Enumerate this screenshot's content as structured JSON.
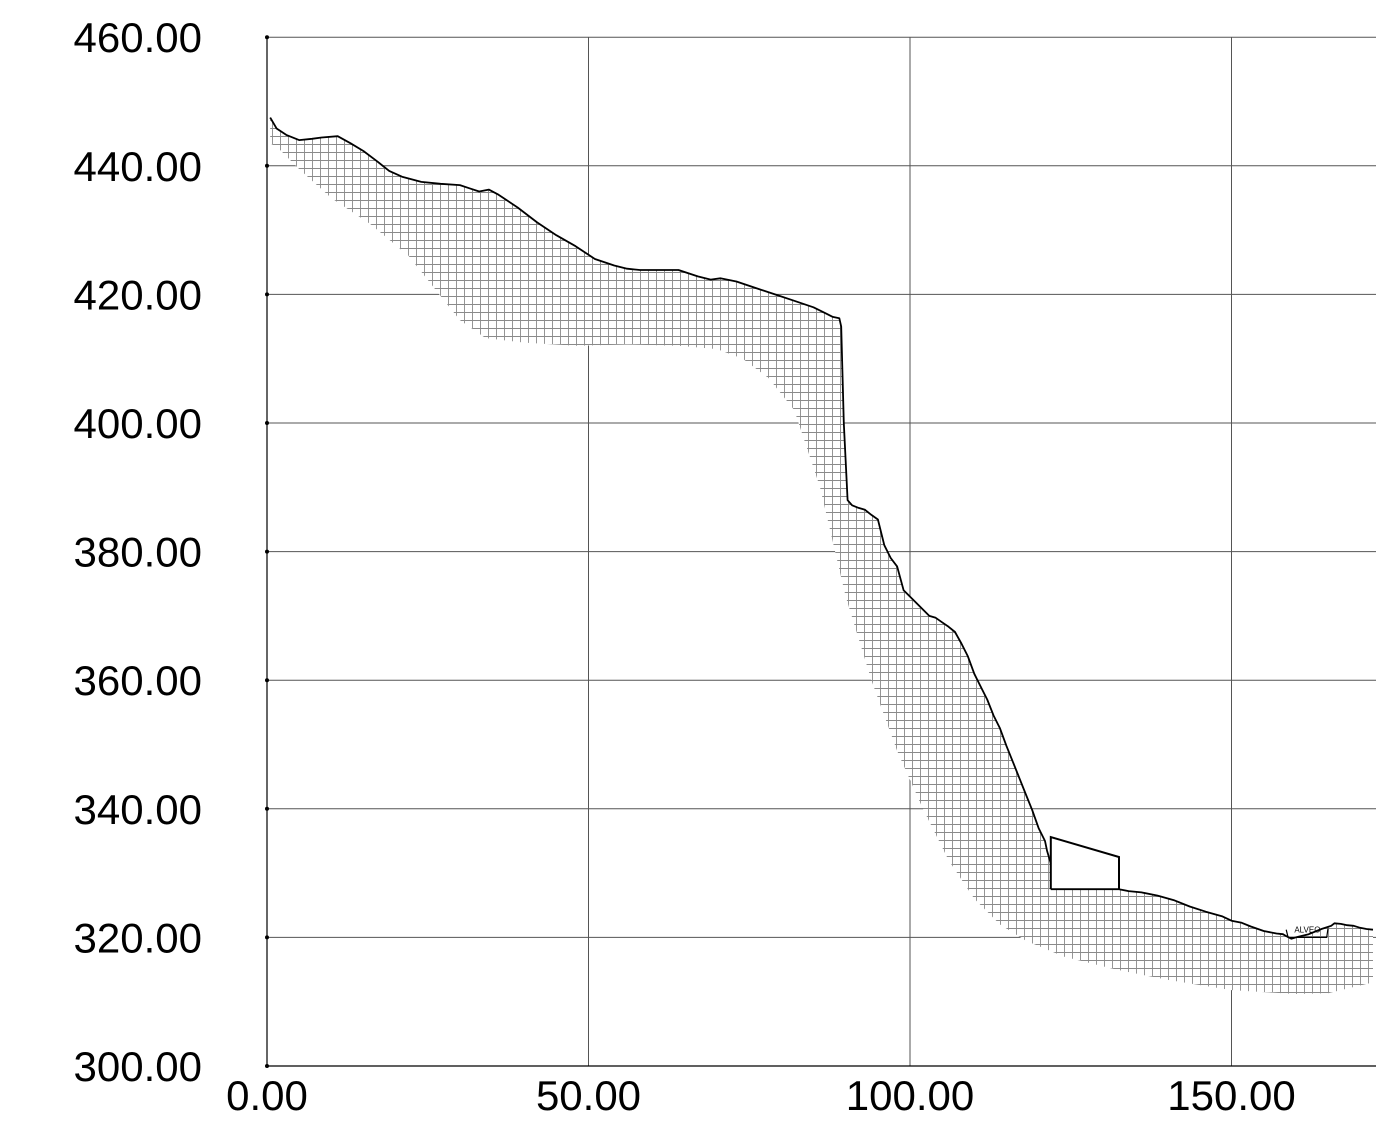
{
  "chart_data": {
    "type": "area",
    "title": "",
    "xlabel": "",
    "ylabel": "",
    "xlim": [
      0,
      172
    ],
    "ylim": [
      300,
      460
    ],
    "x_ticks": [
      0,
      50,
      100,
      150
    ],
    "x_tick_labels": [
      "0.00",
      "50.00",
      "100.00",
      "150.00"
    ],
    "y_ticks": [
      300,
      320,
      340,
      360,
      380,
      400,
      420,
      440,
      460
    ],
    "y_tick_labels": [
      "300.00",
      "320.00",
      "340.00",
      "360.00",
      "380.00",
      "400.00",
      "420.00",
      "440.00",
      "460.00"
    ],
    "grid": true,
    "series": [
      {
        "x": [
          0.5,
          1.5,
          3,
          5,
          7,
          8.5,
          11,
          13,
          15,
          17,
          19,
          21,
          24,
          27,
          30,
          31.5,
          33,
          34.5,
          36,
          39,
          42,
          45,
          48,
          51,
          54,
          56,
          58,
          60,
          64,
          67,
          69,
          70.5,
          73,
          76,
          79,
          82,
          85,
          87,
          88,
          89,
          89.3,
          89.7,
          90.3,
          91,
          92,
          93,
          94,
          95,
          96,
          97,
          98,
          99,
          100,
          101,
          102,
          103,
          104,
          105,
          106,
          107,
          108,
          109,
          110,
          111,
          112,
          113,
          114,
          115,
          116,
          117,
          118,
          119,
          120,
          121,
          121.3,
          121.6,
          121.9
        ],
        "y": [
          447.5,
          445.8,
          444.8,
          444,
          444.2,
          444.4,
          444.6,
          443.5,
          442.3,
          440.8,
          439.2,
          438.3,
          437.5,
          437.2,
          437,
          436.5,
          436,
          436.3,
          435.5,
          433.5,
          431.2,
          429.2,
          427.5,
          425.5,
          424.5,
          424,
          423.8,
          423.8,
          423.8,
          422.8,
          422.3,
          422.5,
          422,
          421,
          420,
          419,
          418,
          417,
          416.5,
          416.3,
          415,
          400,
          388,
          387.2,
          386.8,
          386.5,
          385.7,
          385,
          381,
          379,
          377.7,
          374,
          373,
          372,
          371,
          370,
          369.7,
          369,
          368.3,
          367.5,
          365.7,
          363.7,
          361,
          359,
          357,
          354.5,
          352.5,
          349.8,
          347.3,
          344.8,
          342.3,
          339.8,
          337,
          335,
          333.5,
          332.5,
          331.5
        ]
      },
      {
        "x": [
          121.9,
          132.5,
          134,
          136,
          138.5,
          141,
          143.5,
          146,
          148.5,
          150,
          151.5,
          153,
          155,
          157,
          158,
          158.5,
          159.3,
          160,
          162,
          164,
          165.5,
          166,
          167,
          168,
          169,
          170,
          171,
          172
        ],
        "y": [
          327.5,
          327.5,
          327.2,
          327,
          326.5,
          325.8,
          324.8,
          324,
          323.3,
          322.6,
          322.3,
          321.7,
          321,
          320.6,
          320.5,
          320.2,
          319.8,
          320,
          320.5,
          321.3,
          321.8,
          322.2,
          322.1,
          321.9,
          321.8,
          321.5,
          321.3,
          321.2
        ]
      }
    ],
    "annotations": [
      "ALVEO"
    ]
  }
}
